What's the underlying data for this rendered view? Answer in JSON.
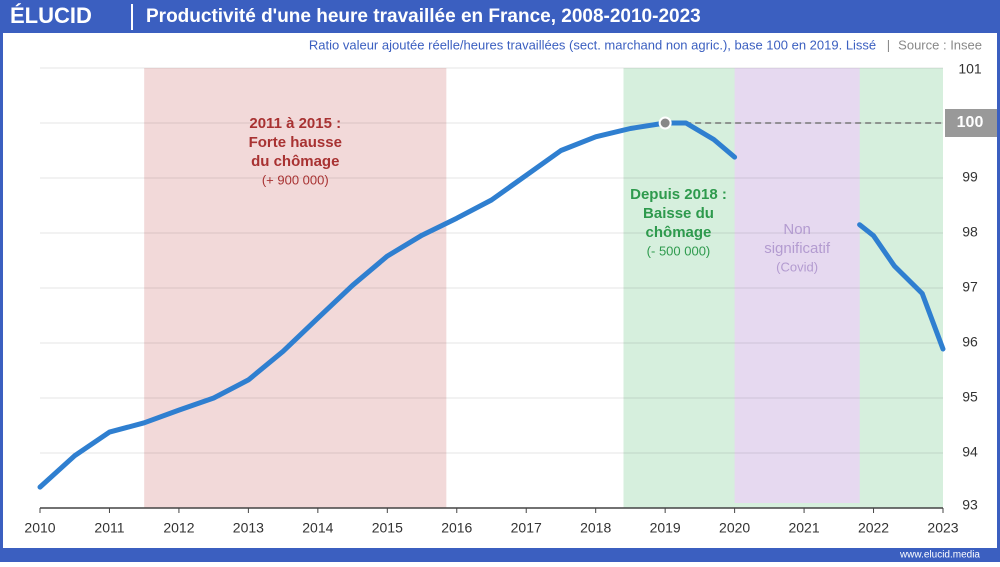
{
  "brand": "ÉLUCID",
  "footer": "www.elucid.media",
  "chart_data": {
    "type": "line",
    "title": "Productivité d'une heure travaillée en France, 2008-2010-2023",
    "subtitle": "Ratio valeur ajoutée réelle/heures travaillées (sect. marchand non agric.), base 100 en 2019. Lissé",
    "separator": "|",
    "source": "Source : Insee",
    "x": [
      2010,
      2010.5,
      2011,
      2011.5,
      2012,
      2012.5,
      2013,
      2013.5,
      2014,
      2014.5,
      2015,
      2015.5,
      2016,
      2016.5,
      2017,
      2017.5,
      2018,
      2018.5,
      2019,
      2019.3,
      2019.7,
      2020,
      2021,
      2021.8,
      2022,
      2022.3,
      2022.7,
      2023
    ],
    "series": [
      {
        "name": "Productivité",
        "color": "#2f7fd0",
        "values": [
          93.38,
          93.95,
          94.38,
          94.55,
          94.78,
          95.0,
          95.33,
          95.85,
          96.45,
          97.05,
          97.58,
          97.96,
          98.27,
          98.6,
          99.05,
          99.5,
          99.75,
          99.9,
          100,
          100,
          99.7,
          99.38,
          null,
          98.15,
          97.95,
          97.4,
          96.9,
          95.89
        ]
      }
    ],
    "xlim": [
      2010,
      2023
    ],
    "xticks": [
      2010,
      2011,
      2012,
      2013,
      2014,
      2015,
      2016,
      2017,
      2018,
      2019,
      2020,
      2021,
      2022,
      2023
    ],
    "ylim": [
      93,
      101
    ],
    "yticks": [
      93,
      94,
      95,
      96,
      97,
      98,
      99,
      100,
      101
    ],
    "grid": true,
    "reference": 100,
    "highlight_x": 2019,
    "regions": [
      {
        "start": 2011.5,
        "end": 2015.85,
        "color": "#f2d9d9",
        "text_color": "#a83232",
        "bold": true,
        "lines": [
          "2011 à 2015 :",
          "Forte hausse",
          "du chômage"
        ],
        "note": "(+ 900 000)"
      },
      {
        "start": 2018.4,
        "end": 2023,
        "color": "#d6efdd",
        "text_color": "#2e9a4d",
        "bold": true,
        "lines": [
          "Depuis 2018 :",
          "Baisse du",
          "chômage"
        ],
        "note": "(- 500 000)"
      },
      {
        "start": 2020,
        "end": 2021.8,
        "color": "#e6d9f0",
        "text_color": "#b39bd0",
        "bold": false,
        "lines": [
          "Non",
          "significatif"
        ],
        "note": "(Covid)"
      }
    ]
  }
}
